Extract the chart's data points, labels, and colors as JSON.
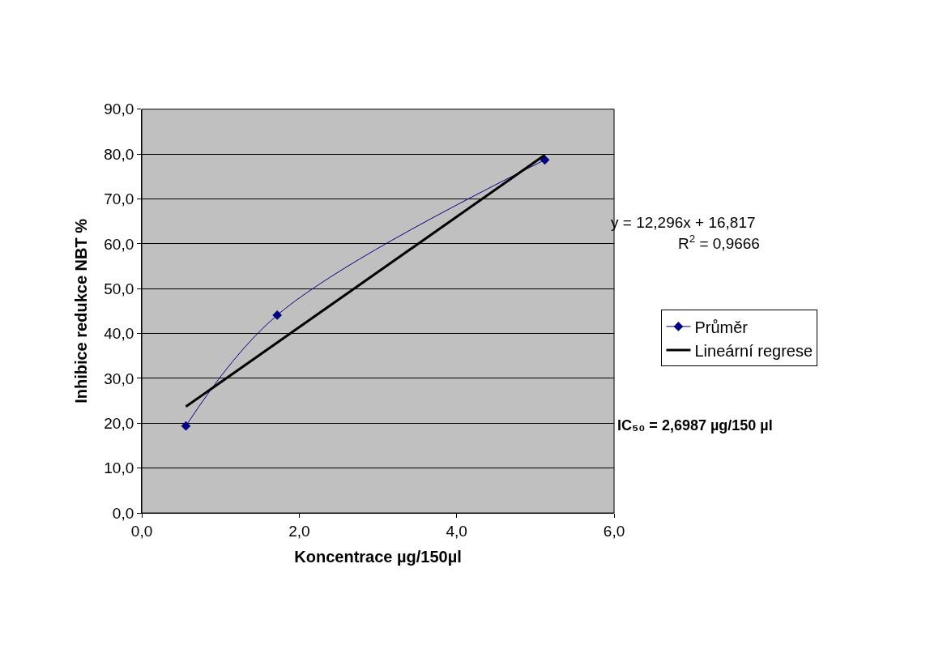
{
  "chart_data": {
    "type": "line",
    "xlabel": "Koncentrace µg/150µl",
    "ylabel": "Inhibice redukce NBT %",
    "xlim": [
      0,
      6
    ],
    "xticks": [
      {
        "value": 0,
        "label": "0,0"
      },
      {
        "value": 2,
        "label": "2,0"
      },
      {
        "value": 4,
        "label": "4,0"
      },
      {
        "value": 6,
        "label": "6,0"
      }
    ],
    "ylim": [
      0,
      90
    ],
    "yticks": [
      {
        "value": 0,
        "label": "0,0"
      },
      {
        "value": 10,
        "label": "10,0"
      },
      {
        "value": 20,
        "label": "20,0"
      },
      {
        "value": 30,
        "label": "30,0"
      },
      {
        "value": 40,
        "label": "40,0"
      },
      {
        "value": 50,
        "label": "50,0"
      },
      {
        "value": 60,
        "label": "60,0"
      },
      {
        "value": 70,
        "label": "70,0"
      },
      {
        "value": 80,
        "label": "80,0"
      },
      {
        "value": 90,
        "label": "90,0"
      }
    ],
    "grid": "y",
    "legend": "right",
    "marker": "diamond",
    "series": [
      {
        "name": "Průměr",
        "color": "#000080",
        "x": [
          0.56,
          1.72,
          5.12
        ],
        "values": [
          19.4,
          44.1,
          78.7
        ]
      },
      {
        "name": "Lineární regrese",
        "color": "#000000",
        "marker": "none",
        "x": [
          0.56,
          5.12
        ],
        "values": [
          23.7,
          79.8
        ]
      }
    ],
    "annotations": [
      "y = 12,296x + 16,817",
      "R$^{2}$ = 0,9666",
      "IC₅₀ = 2,6987 µg/150 µl"
    ]
  }
}
